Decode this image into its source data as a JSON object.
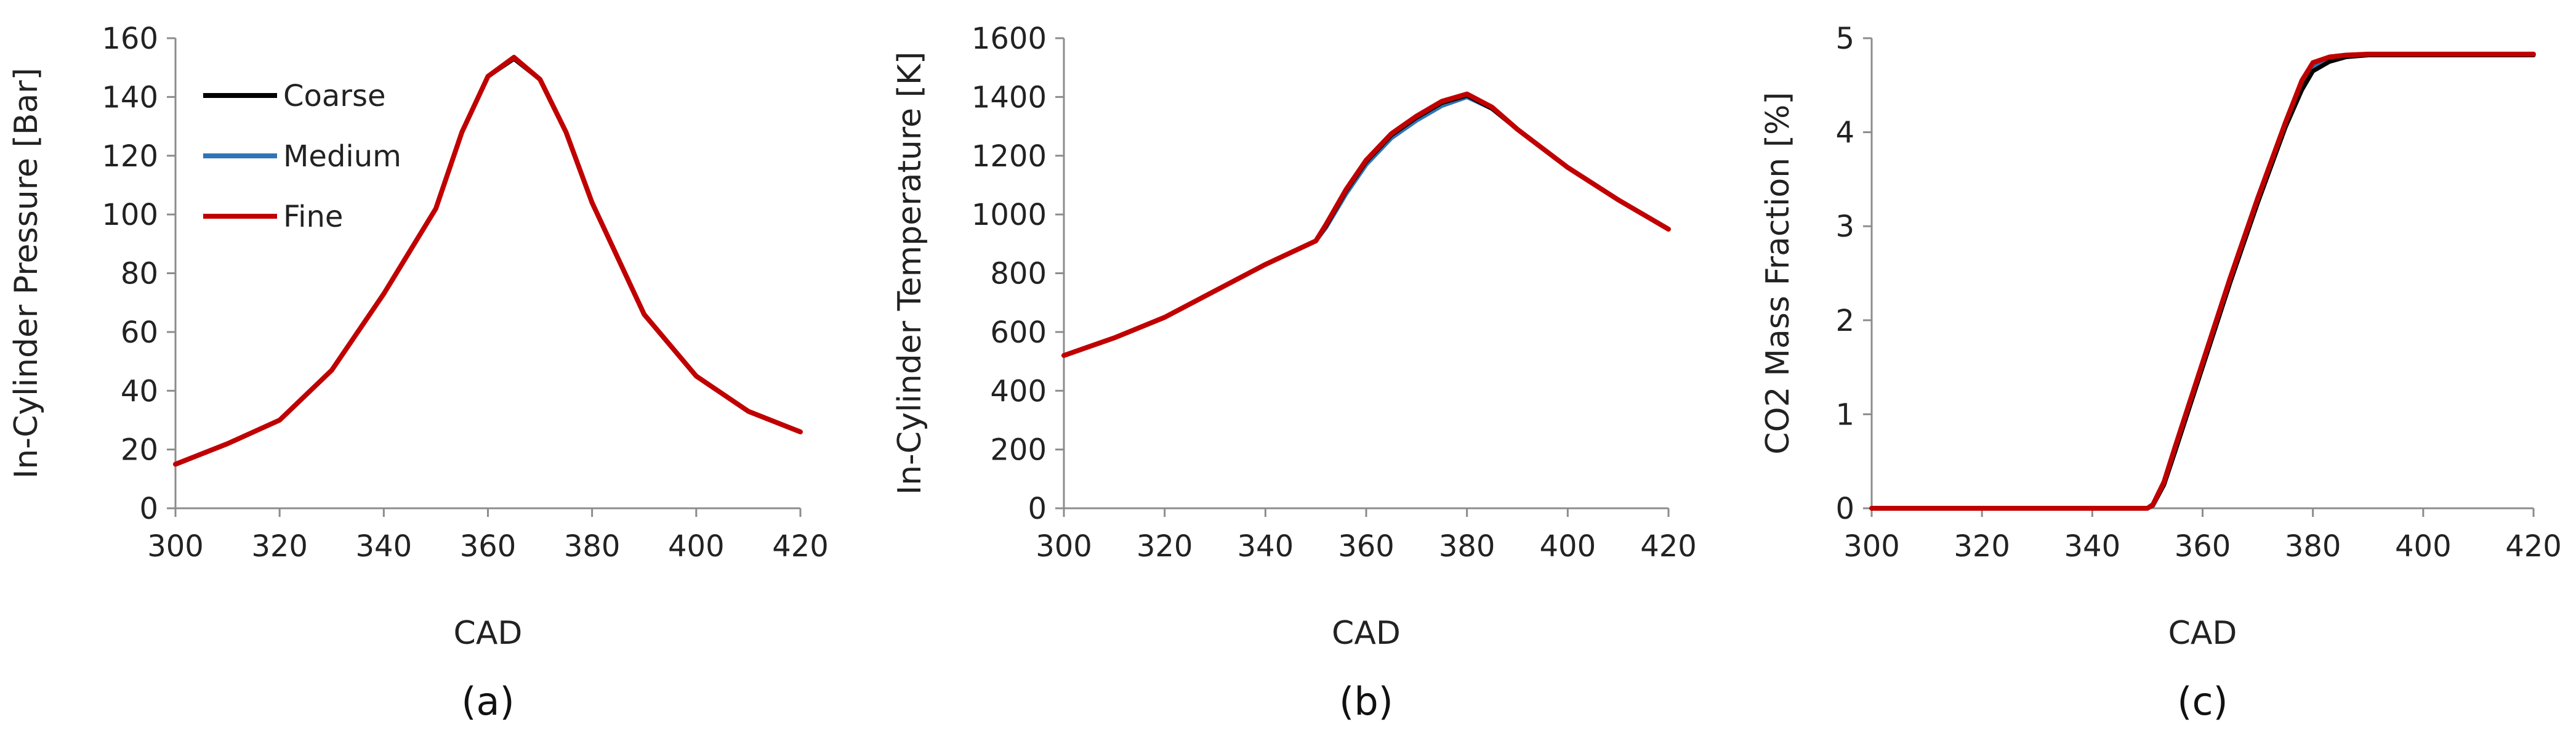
{
  "colors": {
    "Coarse": "#000000",
    "Medium": "#2e75b6",
    "Fine": "#c00000",
    "axis": "#8c8c8c"
  },
  "legend": {
    "entries": [
      "Coarse",
      "Medium",
      "Fine"
    ],
    "placement": "top-left of panel (a)"
  },
  "chart_data": [
    {
      "type": "line",
      "panel_label": "(a)",
      "xlabel": "CAD",
      "ylabel": "In-Cylinder Pressure [Bar]",
      "xlim": [
        300,
        420
      ],
      "ylim": [
        0,
        160
      ],
      "xticks": [
        300,
        320,
        340,
        360,
        380,
        400,
        420
      ],
      "yticks": [
        0,
        20,
        40,
        60,
        80,
        100,
        120,
        140,
        160
      ],
      "grid": false,
      "legend": true,
      "series": [
        {
          "name": "Coarse",
          "x": [
            300,
            310,
            320,
            330,
            340,
            350,
            355,
            360,
            365,
            370,
            375,
            380,
            390,
            400,
            410,
            420
          ],
          "y": [
            15,
            22,
            30,
            47,
            73,
            102,
            128,
            147,
            153,
            146,
            128,
            104,
            66,
            45,
            33,
            26
          ]
        },
        {
          "name": "Medium",
          "x": [
            300,
            310,
            320,
            330,
            340,
            350,
            355,
            360,
            365,
            370,
            375,
            380,
            390,
            400,
            410,
            420
          ],
          "y": [
            15,
            22,
            30,
            47,
            73,
            102,
            128,
            147,
            153,
            146,
            128,
            104,
            66,
            45,
            33,
            26
          ]
        },
        {
          "name": "Fine",
          "x": [
            300,
            310,
            320,
            330,
            340,
            350,
            355,
            360,
            365,
            370,
            375,
            380,
            390,
            400,
            410,
            420
          ],
          "y": [
            15,
            22,
            30,
            47,
            73,
            102,
            128,
            147,
            153.5,
            146,
            128,
            104,
            66,
            45,
            33,
            26
          ]
        }
      ]
    },
    {
      "type": "line",
      "panel_label": "(b)",
      "xlabel": "CAD",
      "ylabel": "In-Cylinder Temperature [K]",
      "xlim": [
        300,
        420
      ],
      "ylim": [
        0,
        1600
      ],
      "xticks": [
        300,
        320,
        340,
        360,
        380,
        400,
        420
      ],
      "yticks": [
        0,
        200,
        400,
        600,
        800,
        1000,
        1200,
        1400,
        1600
      ],
      "grid": false,
      "legend": false,
      "series": [
        {
          "name": "Coarse",
          "x": [
            300,
            310,
            320,
            330,
            340,
            350,
            352,
            356,
            360,
            365,
            370,
            375,
            380,
            385,
            390,
            400,
            410,
            420
          ],
          "y": [
            520,
            580,
            650,
            740,
            830,
            910,
            960,
            1080,
            1180,
            1270,
            1330,
            1380,
            1405,
            1360,
            1290,
            1160,
            1050,
            950
          ]
        },
        {
          "name": "Medium",
          "x": [
            300,
            310,
            320,
            330,
            340,
            350,
            352,
            356,
            360,
            365,
            370,
            375,
            380,
            385,
            390,
            400,
            410,
            420
          ],
          "y": [
            520,
            580,
            650,
            740,
            830,
            910,
            955,
            1070,
            1170,
            1260,
            1320,
            1370,
            1400,
            1360,
            1290,
            1160,
            1050,
            950
          ]
        },
        {
          "name": "Fine",
          "x": [
            300,
            310,
            320,
            330,
            340,
            350,
            352,
            356,
            360,
            365,
            370,
            375,
            380,
            385,
            390,
            400,
            410,
            420
          ],
          "y": [
            520,
            580,
            650,
            740,
            830,
            910,
            965,
            1085,
            1185,
            1275,
            1335,
            1385,
            1410,
            1365,
            1290,
            1160,
            1050,
            950
          ]
        }
      ]
    },
    {
      "type": "line",
      "panel_label": "(c)",
      "xlabel": "CAD",
      "ylabel": "CO2 Mass Fraction [%]",
      "xlim": [
        300,
        420
      ],
      "ylim": [
        0,
        5
      ],
      "xticks": [
        300,
        320,
        340,
        360,
        380,
        400,
        420
      ],
      "yticks": [
        0,
        1,
        2,
        3,
        4,
        5
      ],
      "grid": false,
      "legend": false,
      "series": [
        {
          "name": "Coarse",
          "x": [
            300,
            340,
            350,
            351,
            353,
            355,
            360,
            365,
            370,
            375,
            378,
            380,
            383,
            386,
            390,
            400,
            420
          ],
          "y": [
            0,
            0,
            0,
            0.03,
            0.25,
            0.6,
            1.5,
            2.4,
            3.25,
            4.05,
            4.45,
            4.65,
            4.75,
            4.8,
            4.82,
            4.82,
            4.82
          ]
        },
        {
          "name": "Medium",
          "x": [
            300,
            340,
            350,
            351,
            353,
            355,
            360,
            365,
            370,
            375,
            378,
            380,
            383,
            386,
            390,
            400,
            420
          ],
          "y": [
            0,
            0,
            0,
            0.03,
            0.25,
            0.6,
            1.52,
            2.42,
            3.28,
            4.08,
            4.5,
            4.7,
            4.78,
            4.81,
            4.82,
            4.82,
            4.82
          ]
        },
        {
          "name": "Fine",
          "x": [
            300,
            340,
            350,
            351,
            353,
            355,
            360,
            365,
            370,
            375,
            378,
            380,
            383,
            386,
            390,
            400,
            420
          ],
          "y": [
            0,
            0,
            0,
            0.04,
            0.28,
            0.65,
            1.55,
            2.45,
            3.3,
            4.1,
            4.55,
            4.74,
            4.8,
            4.82,
            4.83,
            4.83,
            4.83
          ]
        }
      ]
    }
  ]
}
